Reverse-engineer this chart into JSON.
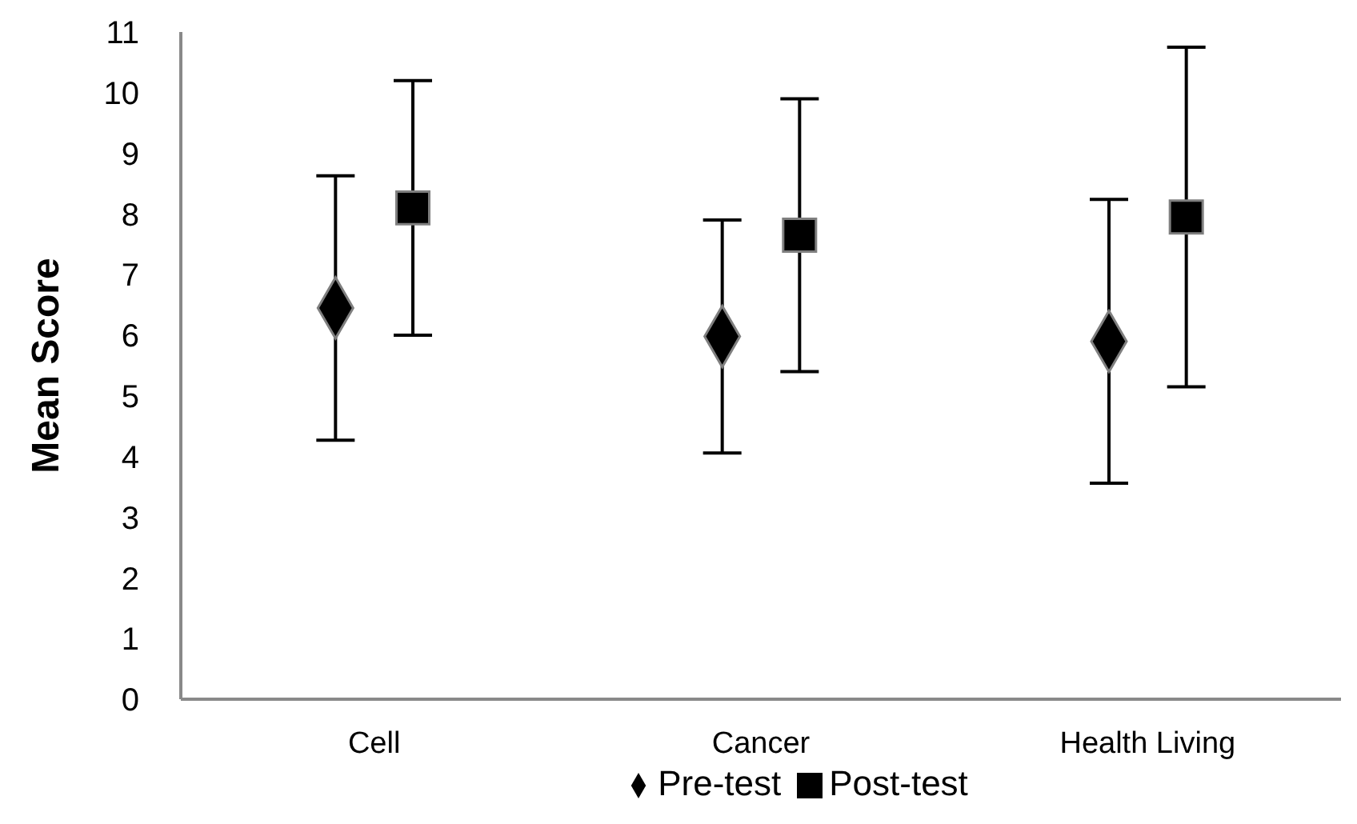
{
  "chart_data": {
    "type": "scatter",
    "ylabel": "Mean Score",
    "categories": [
      "Cell",
      "Cancer",
      "Health Living"
    ],
    "series": [
      {
        "name": "Pre-test",
        "color": "#000000",
        "marker": "diamond",
        "values": [
          6.45,
          5.98,
          5.9
        ],
        "errors": [
          2.18,
          1.92,
          2.34
        ]
      },
      {
        "name": "Post-test",
        "color": "#000000",
        "marker": "square",
        "values": [
          8.1,
          7.65,
          7.95
        ],
        "errors": [
          2.1,
          2.25,
          2.8
        ]
      }
    ],
    "ylim": [
      0,
      11
    ],
    "yticks": [
      0,
      1,
      2,
      3,
      4,
      5,
      6,
      7,
      8,
      9,
      10,
      11
    ],
    "grid": false,
    "legend": "bottom"
  }
}
